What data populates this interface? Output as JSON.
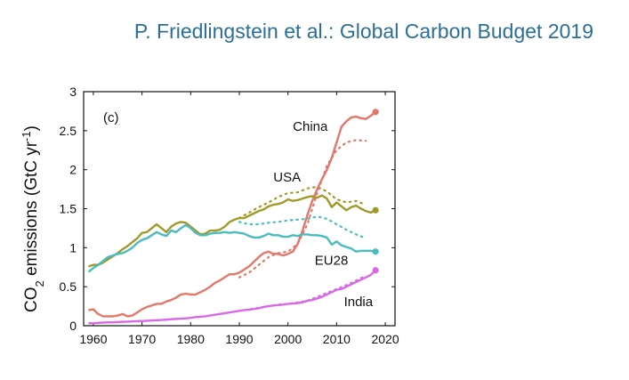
{
  "title": "P. Friedlingstein et al.: Global Carbon Budget 2019",
  "colors": {
    "china": "#e2776a",
    "usa": "#a09a2a",
    "eu28": "#4bbcbf",
    "india": "#d86ae6"
  },
  "chart_data": {
    "type": "line",
    "panel_label": "(c)",
    "ylabel": "CO2 emissions (GtC yr-1)",
    "ylabel_parts": {
      "main": "CO",
      "sub": "2",
      "rest": " emissions (GtC yr",
      "sup": "-1",
      "close": ")"
    },
    "xlim": [
      1958,
      2022
    ],
    "ylim": [
      0,
      3
    ],
    "xticks": [
      1960,
      1970,
      1980,
      1990,
      2000,
      2010,
      2020
    ],
    "yticks": [
      0,
      0.5,
      1,
      1.5,
      2,
      2.5,
      3
    ],
    "ytick_labels": [
      "0",
      "0.5",
      "1",
      "1.5",
      "2",
      "2.5",
      "3"
    ],
    "series": [
      {
        "name": "China",
        "key": "china",
        "x": [
          1959,
          1960,
          1961,
          1962,
          1963,
          1964,
          1965,
          1966,
          1967,
          1968,
          1969,
          1970,
          1971,
          1972,
          1973,
          1974,
          1975,
          1976,
          1977,
          1978,
          1979,
          1980,
          1981,
          1982,
          1983,
          1984,
          1985,
          1986,
          1987,
          1988,
          1989,
          1990,
          1991,
          1992,
          1993,
          1994,
          1995,
          1996,
          1997,
          1998,
          1999,
          2000,
          2001,
          2002,
          2003,
          2004,
          2005,
          2006,
          2007,
          2008,
          2009,
          2010,
          2011,
          2012,
          2013,
          2014,
          2015,
          2016,
          2017,
          2018
        ],
        "y": [
          0.2,
          0.21,
          0.15,
          0.12,
          0.12,
          0.12,
          0.13,
          0.15,
          0.12,
          0.13,
          0.17,
          0.21,
          0.24,
          0.26,
          0.28,
          0.28,
          0.31,
          0.33,
          0.36,
          0.4,
          0.41,
          0.4,
          0.4,
          0.43,
          0.46,
          0.5,
          0.55,
          0.58,
          0.62,
          0.66,
          0.66,
          0.68,
          0.72,
          0.76,
          0.82,
          0.88,
          0.93,
          0.95,
          0.92,
          0.92,
          0.9,
          0.92,
          0.95,
          1.05,
          1.22,
          1.42,
          1.6,
          1.75,
          1.88,
          2.0,
          2.15,
          2.35,
          2.55,
          2.62,
          2.67,
          2.68,
          2.66,
          2.65,
          2.69,
          2.74
        ],
        "alt_x": [
          1990,
          1992,
          1994,
          1996,
          1998,
          2000,
          2002,
          2004,
          2006,
          2008,
          2010,
          2012,
          2014,
          2016
        ],
        "alt_y": [
          0.62,
          0.68,
          0.78,
          0.88,
          0.93,
          0.95,
          1.05,
          1.3,
          1.7,
          2.05,
          2.25,
          2.35,
          2.38,
          2.37
        ],
        "end_marker": true
      },
      {
        "name": "USA",
        "key": "usa",
        "x": [
          1959,
          1960,
          1961,
          1962,
          1963,
          1964,
          1965,
          1966,
          1967,
          1968,
          1969,
          1970,
          1971,
          1972,
          1973,
          1974,
          1975,
          1976,
          1977,
          1978,
          1979,
          1980,
          1981,
          1982,
          1983,
          1984,
          1985,
          1986,
          1987,
          1988,
          1989,
          1990,
          1991,
          1992,
          1993,
          1994,
          1995,
          1996,
          1997,
          1998,
          1999,
          2000,
          2001,
          2002,
          2003,
          2004,
          2005,
          2006,
          2007,
          2008,
          2009,
          2010,
          2011,
          2012,
          2013,
          2014,
          2015,
          2016,
          2017,
          2018
        ],
        "y": [
          0.76,
          0.78,
          0.78,
          0.81,
          0.85,
          0.89,
          0.93,
          0.98,
          1.02,
          1.07,
          1.12,
          1.19,
          1.2,
          1.25,
          1.3,
          1.25,
          1.2,
          1.27,
          1.31,
          1.33,
          1.32,
          1.27,
          1.22,
          1.17,
          1.18,
          1.22,
          1.22,
          1.23,
          1.27,
          1.33,
          1.36,
          1.38,
          1.38,
          1.41,
          1.44,
          1.47,
          1.49,
          1.53,
          1.55,
          1.56,
          1.58,
          1.62,
          1.6,
          1.61,
          1.63,
          1.65,
          1.66,
          1.64,
          1.67,
          1.63,
          1.52,
          1.58,
          1.53,
          1.48,
          1.52,
          1.54,
          1.5,
          1.47,
          1.45,
          1.48
        ],
        "alt_x": [
          1990,
          1992,
          1994,
          1996,
          1998,
          2000,
          2002,
          2004,
          2006,
          2008,
          2010,
          2012,
          2014,
          2016
        ],
        "alt_y": [
          1.38,
          1.45,
          1.52,
          1.58,
          1.65,
          1.7,
          1.71,
          1.76,
          1.78,
          1.72,
          1.62,
          1.58,
          1.6,
          1.55
        ],
        "end_marker": true
      },
      {
        "name": "EU28",
        "key": "eu28",
        "x": [
          1959,
          1960,
          1961,
          1962,
          1963,
          1964,
          1965,
          1966,
          1967,
          1968,
          1969,
          1970,
          1971,
          1972,
          1973,
          1974,
          1975,
          1976,
          1977,
          1978,
          1979,
          1980,
          1981,
          1982,
          1983,
          1984,
          1985,
          1986,
          1987,
          1988,
          1989,
          1990,
          1991,
          1992,
          1993,
          1994,
          1995,
          1996,
          1997,
          1998,
          1999,
          2000,
          2001,
          2002,
          2003,
          2004,
          2005,
          2006,
          2007,
          2008,
          2009,
          2010,
          2011,
          2012,
          2013,
          2014,
          2015,
          2016,
          2017,
          2018
        ],
        "y": [
          0.69,
          0.74,
          0.78,
          0.83,
          0.88,
          0.9,
          0.92,
          0.93,
          0.96,
          1.0,
          1.06,
          1.1,
          1.12,
          1.16,
          1.2,
          1.17,
          1.15,
          1.22,
          1.2,
          1.25,
          1.29,
          1.25,
          1.19,
          1.16,
          1.16,
          1.18,
          1.19,
          1.19,
          1.2,
          1.19,
          1.2,
          1.19,
          1.18,
          1.15,
          1.13,
          1.13,
          1.15,
          1.18,
          1.16,
          1.16,
          1.14,
          1.14,
          1.16,
          1.15,
          1.17,
          1.17,
          1.16,
          1.16,
          1.15,
          1.13,
          1.04,
          1.08,
          1.03,
          1.01,
          0.99,
          0.95,
          0.96,
          0.96,
          0.96,
          0.95
        ],
        "alt_x": [
          1990,
          1992,
          1994,
          1996,
          1998,
          2000,
          2002,
          2004,
          2006,
          2008,
          2010,
          2012,
          2014,
          2016
        ],
        "alt_y": [
          1.33,
          1.3,
          1.3,
          1.32,
          1.33,
          1.35,
          1.36,
          1.37,
          1.4,
          1.37,
          1.3,
          1.23,
          1.17,
          1.12
        ],
        "end_marker": true
      },
      {
        "name": "India",
        "key": "india",
        "x": [
          1959,
          1960,
          1961,
          1962,
          1963,
          1964,
          1965,
          1966,
          1967,
          1968,
          1969,
          1970,
          1971,
          1972,
          1973,
          1974,
          1975,
          1976,
          1977,
          1978,
          1979,
          1980,
          1981,
          1982,
          1983,
          1984,
          1985,
          1986,
          1987,
          1988,
          1989,
          1990,
          1991,
          1992,
          1993,
          1994,
          1995,
          1996,
          1997,
          1998,
          1999,
          2000,
          2001,
          2002,
          2003,
          2004,
          2005,
          2006,
          2007,
          2008,
          2009,
          2010,
          2011,
          2012,
          2013,
          2014,
          2015,
          2016,
          2017,
          2018
        ],
        "y": [
          0.03,
          0.033,
          0.036,
          0.04,
          0.043,
          0.044,
          0.048,
          0.05,
          0.052,
          0.055,
          0.058,
          0.06,
          0.063,
          0.066,
          0.07,
          0.073,
          0.078,
          0.083,
          0.087,
          0.09,
          0.095,
          0.1,
          0.11,
          0.115,
          0.12,
          0.13,
          0.14,
          0.15,
          0.16,
          0.17,
          0.18,
          0.19,
          0.2,
          0.205,
          0.215,
          0.225,
          0.24,
          0.25,
          0.26,
          0.265,
          0.27,
          0.28,
          0.285,
          0.29,
          0.3,
          0.32,
          0.33,
          0.35,
          0.37,
          0.4,
          0.43,
          0.46,
          0.47,
          0.5,
          0.53,
          0.56,
          0.59,
          0.62,
          0.65,
          0.71
        ],
        "alt_x": [
          1990,
          1992,
          1994,
          1996,
          1998,
          2000,
          2002,
          2004,
          2006,
          2008,
          2010,
          2012,
          2014,
          2016
        ],
        "alt_y": [
          0.19,
          0.21,
          0.23,
          0.25,
          0.27,
          0.28,
          0.3,
          0.32,
          0.37,
          0.42,
          0.47,
          0.52,
          0.58,
          0.64
        ],
        "end_marker": true
      }
    ],
    "series_labels": [
      {
        "key": "china",
        "text": "China",
        "at": [
          2001,
          2.5
        ]
      },
      {
        "key": "usa",
        "text": "USA",
        "at": [
          1997,
          1.85
        ]
      },
      {
        "key": "eu28",
        "text": "EU28",
        "at": [
          2005.5,
          0.78
        ]
      },
      {
        "key": "india",
        "text": "India",
        "at": [
          2011.5,
          0.25
        ]
      }
    ]
  }
}
